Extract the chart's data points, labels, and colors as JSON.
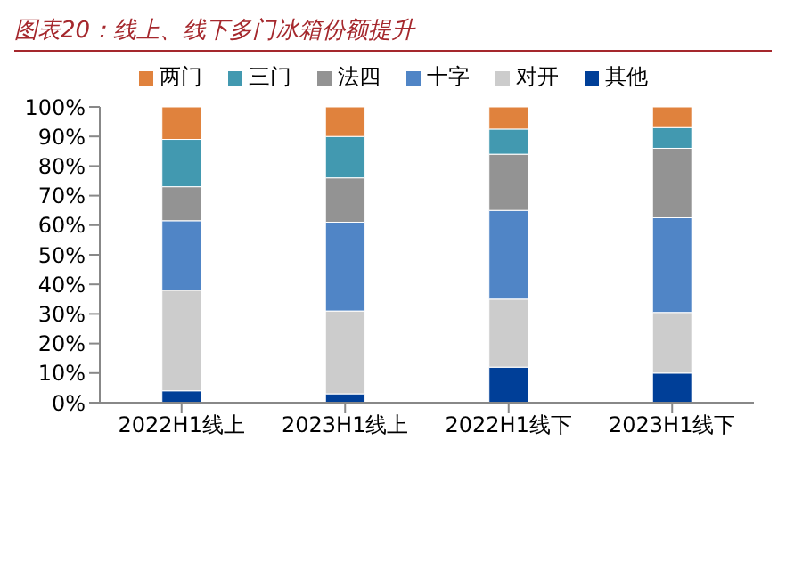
{
  "chart_data": {
    "type": "bar",
    "title": "图表20：线上、线下多门冰箱份额提升",
    "stacked": true,
    "legend": "top",
    "grid": false,
    "categories": [
      "2022H1线上",
      "2023H1线上",
      "2022H1线下",
      "2023H1线下"
    ],
    "ylim": [
      0,
      100
    ],
    "yticks": [
      {
        "value": 0,
        "label": "0%"
      },
      {
        "value": 10,
        "label": "10%"
      },
      {
        "value": 20,
        "label": "20%"
      },
      {
        "value": 30,
        "label": "30%"
      },
      {
        "value": 40,
        "label": "40%"
      },
      {
        "value": 50,
        "label": "50%"
      },
      {
        "value": 60,
        "label": "60%"
      },
      {
        "value": 70,
        "label": "70%"
      },
      {
        "value": 80,
        "label": "80%"
      },
      {
        "value": 90,
        "label": "90%"
      },
      {
        "value": 100,
        "label": "100%"
      }
    ],
    "series": [
      {
        "name": "其他",
        "color": "#003f98",
        "values": [
          4,
          3,
          12,
          10
        ]
      },
      {
        "name": "对开",
        "color": "#cccccc",
        "values": [
          34,
          28,
          23,
          20.5
        ]
      },
      {
        "name": "十字",
        "color": "#5085c6",
        "values": [
          23.5,
          30,
          30,
          32
        ]
      },
      {
        "name": "法四",
        "color": "#939393",
        "values": [
          11.5,
          15,
          19,
          23.5
        ]
      },
      {
        "name": "三门",
        "color": "#4299b0",
        "values": [
          16,
          14,
          8.5,
          7
        ]
      },
      {
        "name": "两门",
        "color": "#e0823d",
        "values": [
          11,
          10,
          7.5,
          7
        ]
      }
    ]
  }
}
